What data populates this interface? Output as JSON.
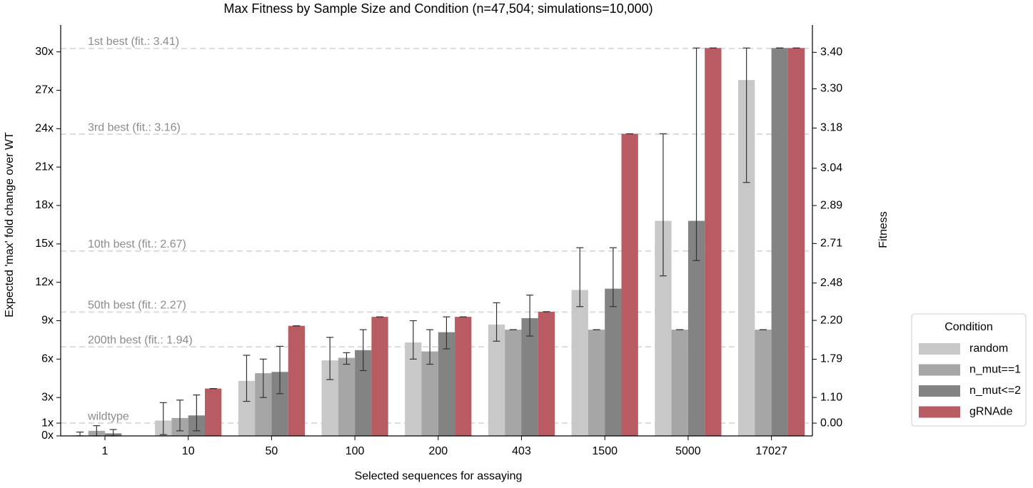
{
  "chart_data": {
    "type": "bar",
    "title": "Max Fitness by Sample Size and Condition (n=47,504; simulations=10,000)",
    "xlabel": "Selected sequences for assaying",
    "ylabel": "Expected 'max' fold change over WT",
    "y2label": "Fitness",
    "y2scale": "ln",
    "categories": [
      "1",
      "10",
      "50",
      "100",
      "200",
      "403",
      "1500",
      "5000",
      "17027"
    ],
    "series": [
      {
        "name": "random",
        "color": "#c8c8c8",
        "values": [
          0.05,
          1.2,
          4.3,
          5.9,
          7.3,
          8.7,
          11.4,
          16.8,
          27.8
        ],
        "err_lo": [
          0,
          0.1,
          2.7,
          4.4,
          6.0,
          7.4,
          10.1,
          12.5,
          19.8
        ],
        "err_hi": [
          0.3,
          2.6,
          6.3,
          7.7,
          9.0,
          10.4,
          14.7,
          23.6,
          30.3
        ]
      },
      {
        "name": "n_mut==1",
        "color": "#a6a6a6",
        "values": [
          0.4,
          1.4,
          4.9,
          6.1,
          6.6,
          8.3,
          8.3,
          8.3,
          8.3
        ],
        "err_lo": [
          0,
          0.4,
          3.0,
          5.6,
          5.6,
          8.3,
          8.3,
          8.3,
          8.3
        ],
        "err_hi": [
          0.8,
          2.8,
          6.0,
          6.5,
          8.3,
          8.3,
          8.3,
          8.3,
          8.3
        ]
      },
      {
        "name": "n_mut<=2",
        "color": "#838383",
        "values": [
          0.2,
          1.6,
          5.0,
          6.7,
          8.1,
          9.2,
          11.5,
          16.8,
          30.3
        ],
        "err_lo": [
          0,
          0.4,
          3.3,
          5.1,
          6.8,
          7.8,
          10.1,
          13.7,
          30.3
        ],
        "err_hi": [
          0.5,
          3.2,
          7.0,
          8.3,
          9.3,
          11.0,
          14.7,
          30.3,
          30.3
        ]
      },
      {
        "name": "gRNAde",
        "color": "#b85b62",
        "values": [
          null,
          3.7,
          8.6,
          9.3,
          9.3,
          9.7,
          23.6,
          30.3,
          30.3
        ],
        "err_lo": [
          null,
          3.7,
          8.6,
          9.3,
          9.3,
          9.7,
          23.6,
          30.3,
          30.3
        ],
        "err_hi": [
          null,
          3.7,
          8.6,
          9.3,
          9.3,
          9.7,
          23.6,
          30.3,
          30.3
        ]
      }
    ],
    "ylim": [
      0,
      32.1
    ],
    "yticks": [
      {
        "value": 0,
        "label": "0x"
      },
      {
        "value": 1,
        "label": "1x"
      },
      {
        "value": 3,
        "label": "3x"
      },
      {
        "value": 6,
        "label": "6x"
      },
      {
        "value": 9,
        "label": "9x"
      },
      {
        "value": 12,
        "label": "12x"
      },
      {
        "value": 15,
        "label": "15x"
      },
      {
        "value": 18,
        "label": "18x"
      },
      {
        "value": 21,
        "label": "21x"
      },
      {
        "value": 24,
        "label": "24x"
      },
      {
        "value": 27,
        "label": "27x"
      },
      {
        "value": 30,
        "label": "30x"
      }
    ],
    "y2ticks": [
      {
        "value": 3.4,
        "label": "3.40"
      },
      {
        "value": 3.3,
        "label": "3.30"
      },
      {
        "value": 3.18,
        "label": "3.18"
      },
      {
        "value": 3.04,
        "label": "3.04"
      },
      {
        "value": 2.89,
        "label": "2.89"
      },
      {
        "value": 2.71,
        "label": "2.71"
      },
      {
        "value": 2.48,
        "label": "2.48"
      },
      {
        "value": 2.2,
        "label": "2.20"
      },
      {
        "value": 1.79,
        "label": "1.79"
      },
      {
        "value": 1.1,
        "label": "1.10"
      },
      {
        "value": 0.0,
        "label": "0.00"
      }
    ],
    "reference_lines": [
      {
        "text": "1st best (fit.: 3.41)",
        "value": 3.41
      },
      {
        "text": "3rd best (fit.: 3.16)",
        "value": 3.16
      },
      {
        "text": "10th best (fit.: 2.67)",
        "value": 2.67
      },
      {
        "text": "50th best (fit.: 2.27)",
        "value": 2.27
      },
      {
        "text": "200th best (fit.: 1.94)",
        "value": 1.94
      },
      {
        "text": "wildtype",
        "value": 0
      }
    ],
    "legend_title": "Condition",
    "legend": "right"
  }
}
